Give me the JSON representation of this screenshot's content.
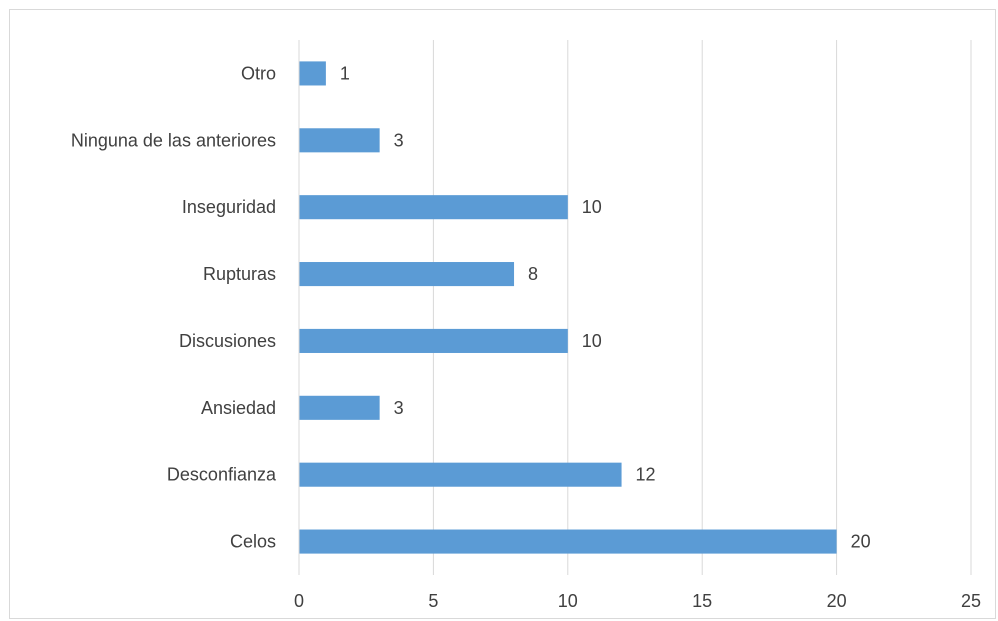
{
  "chart_data": {
    "type": "bar",
    "orientation": "horizontal",
    "categories": [
      "Celos",
      "Desconfianza",
      "Ansiedad",
      "Discusiones",
      "Rupturas",
      "Inseguridad",
      "Ninguna de las anteriores",
      "Otro"
    ],
    "values": [
      20,
      12,
      3,
      10,
      8,
      10,
      3,
      1
    ],
    "xlim": [
      0,
      25
    ],
    "xticks": [
      0,
      5,
      10,
      15,
      20,
      25
    ],
    "grid": "vertical",
    "data_labels": true,
    "legend": "none",
    "bar_color": "#5b9bd5"
  }
}
